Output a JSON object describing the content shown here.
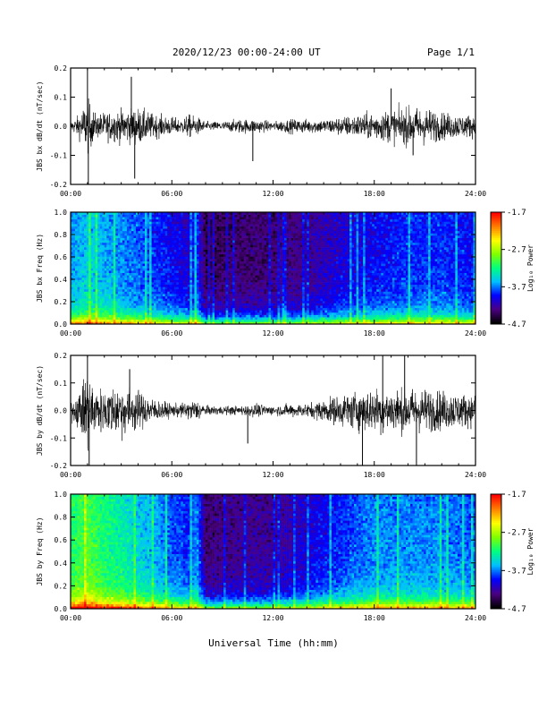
{
  "header": {
    "title": "2020/12/23  00:00-24:00 UT",
    "page": "Page 1/1"
  },
  "xlabel": "Universal Time (hh:mm)",
  "colors": {
    "waveform": "#000000",
    "spectrogram_low": "#3a007a",
    "spectrogram_high": "#ff2a00"
  },
  "colorbar_colors": [
    "#000000",
    "#4b0082",
    "#0000ff",
    "#00bfff",
    "#00ff7f",
    "#7fff00",
    "#ffff00",
    "#ff8000",
    "#ff0000"
  ],
  "chart_data": [
    {
      "type": "line",
      "panel": "bx-waveform",
      "ylabel": "JBS bx dB/dt (nT/sec)",
      "x_ticks": [
        "00:00",
        "06:00",
        "12:00",
        "18:00",
        "24:00"
      ],
      "y_ticks": [
        "-0.2",
        "-0.1",
        "0.0",
        "0.1",
        "0.2"
      ],
      "ylim": [
        -0.2,
        0.2
      ],
      "xlim_hours": [
        0,
        24
      ],
      "envelope": {
        "hours": [
          0,
          0.5,
          1,
          1.5,
          2,
          3,
          4,
          5,
          6,
          6.5,
          7,
          7.5,
          8,
          9,
          10,
          11,
          12,
          13,
          14,
          15,
          16,
          17,
          18,
          19,
          20,
          21,
          22,
          23,
          24
        ],
        "amplitude": [
          0.02,
          0.05,
          0.12,
          0.05,
          0.06,
          0.07,
          0.08,
          0.05,
          0.04,
          0.03,
          0.05,
          0.04,
          0.02,
          0.02,
          0.03,
          0.03,
          0.02,
          0.03,
          0.03,
          0.03,
          0.04,
          0.05,
          0.06,
          0.07,
          0.08,
          0.08,
          0.06,
          0.05,
          0.05
        ],
        "spikes": [
          [
            1.0,
            0.2
          ],
          [
            1.05,
            -0.2
          ],
          [
            3.6,
            0.17
          ],
          [
            3.8,
            -0.18
          ],
          [
            10.8,
            -0.12
          ],
          [
            19.0,
            0.13
          ],
          [
            20.3,
            -0.1
          ]
        ]
      }
    },
    {
      "type": "heatmap",
      "panel": "bx-spectrogram",
      "ylabel": "JBS bx Freq (Hz)",
      "x_ticks": [
        "00:00",
        "06:00",
        "12:00",
        "18:00",
        "24:00"
      ],
      "y_ticks": [
        "0.0",
        "0.2",
        "0.4",
        "0.6",
        "0.8",
        "1.0"
      ],
      "ylim": [
        0,
        1.0
      ],
      "xlim_hours": [
        0,
        24
      ],
      "colorbar_label": "Log₁₀ Power",
      "colorbar_ticks": [
        "-1.7",
        "-2.7",
        "-3.7",
        "-4.7"
      ],
      "zlim": [
        -4.7,
        -1.7
      ],
      "level_hours": [
        0,
        1,
        2,
        3,
        4,
        5,
        6,
        7,
        7.5,
        8,
        10,
        12,
        14,
        16,
        18,
        20,
        22,
        24
      ],
      "level_values": [
        -3.7,
        -3.5,
        -3.6,
        -3.7,
        -3.8,
        -3.9,
        -4.0,
        -4.1,
        -3.9,
        -4.5,
        -4.4,
        -4.4,
        -4.3,
        -4.1,
        -4.0,
        -3.9,
        -3.9,
        -4.0
      ]
    },
    {
      "type": "line",
      "panel": "by-waveform",
      "ylabel": "JBS by dB/dt (nT/sec)",
      "x_ticks": [
        "00:00",
        "06:00",
        "12:00",
        "18:00",
        "24:00"
      ],
      "y_ticks": [
        "-0.2",
        "-0.1",
        "0.0",
        "0.1",
        "0.2"
      ],
      "ylim": [
        -0.2,
        0.2
      ],
      "xlim_hours": [
        0,
        24
      ],
      "envelope": {
        "hours": [
          0,
          0.5,
          1,
          1.5,
          2,
          3,
          4,
          5,
          6,
          6.5,
          7,
          7.5,
          8,
          9,
          10,
          11,
          12,
          13,
          14,
          15,
          16,
          17,
          18,
          19,
          20,
          21,
          22,
          23,
          24
        ],
        "amplitude": [
          0.04,
          0.08,
          0.2,
          0.1,
          0.1,
          0.12,
          0.09,
          0.05,
          0.03,
          0.03,
          0.04,
          0.05,
          0.02,
          0.02,
          0.02,
          0.03,
          0.02,
          0.03,
          0.03,
          0.05,
          0.07,
          0.09,
          0.1,
          0.1,
          0.1,
          0.1,
          0.09,
          0.08,
          0.07
        ],
        "spikes": [
          [
            1.0,
            0.2
          ],
          [
            1.1,
            -0.2
          ],
          [
            3.5,
            0.15
          ],
          [
            10.5,
            -0.12
          ],
          [
            17.3,
            -0.2
          ],
          [
            18.5,
            0.2
          ],
          [
            19.8,
            0.2
          ],
          [
            20.5,
            -0.2
          ]
        ]
      }
    },
    {
      "type": "heatmap",
      "panel": "by-spectrogram",
      "ylabel": "JBS by Freq (Hz)",
      "x_ticks": [
        "00:00",
        "06:00",
        "12:00",
        "18:00",
        "24:00"
      ],
      "y_ticks": [
        "0.0",
        "0.2",
        "0.4",
        "0.6",
        "0.8",
        "1.0"
      ],
      "ylim": [
        0,
        1.0
      ],
      "xlim_hours": [
        0,
        24
      ],
      "colorbar_label": "Log₁₀ Power",
      "colorbar_ticks": [
        "-1.7",
        "-2.7",
        "-3.7",
        "-4.7"
      ],
      "zlim": [
        -4.7,
        -1.7
      ],
      "level_hours": [
        0,
        1,
        2,
        3,
        4,
        5,
        6,
        7,
        7.5,
        8,
        10,
        12,
        14,
        16,
        18,
        20,
        22,
        24
      ],
      "level_values": [
        -3.2,
        -3.0,
        -3.2,
        -3.3,
        -3.5,
        -3.6,
        -3.8,
        -3.9,
        -3.7,
        -4.4,
        -4.3,
        -4.3,
        -4.1,
        -3.9,
        -3.7,
        -3.7,
        -3.7,
        -3.8
      ]
    }
  ]
}
